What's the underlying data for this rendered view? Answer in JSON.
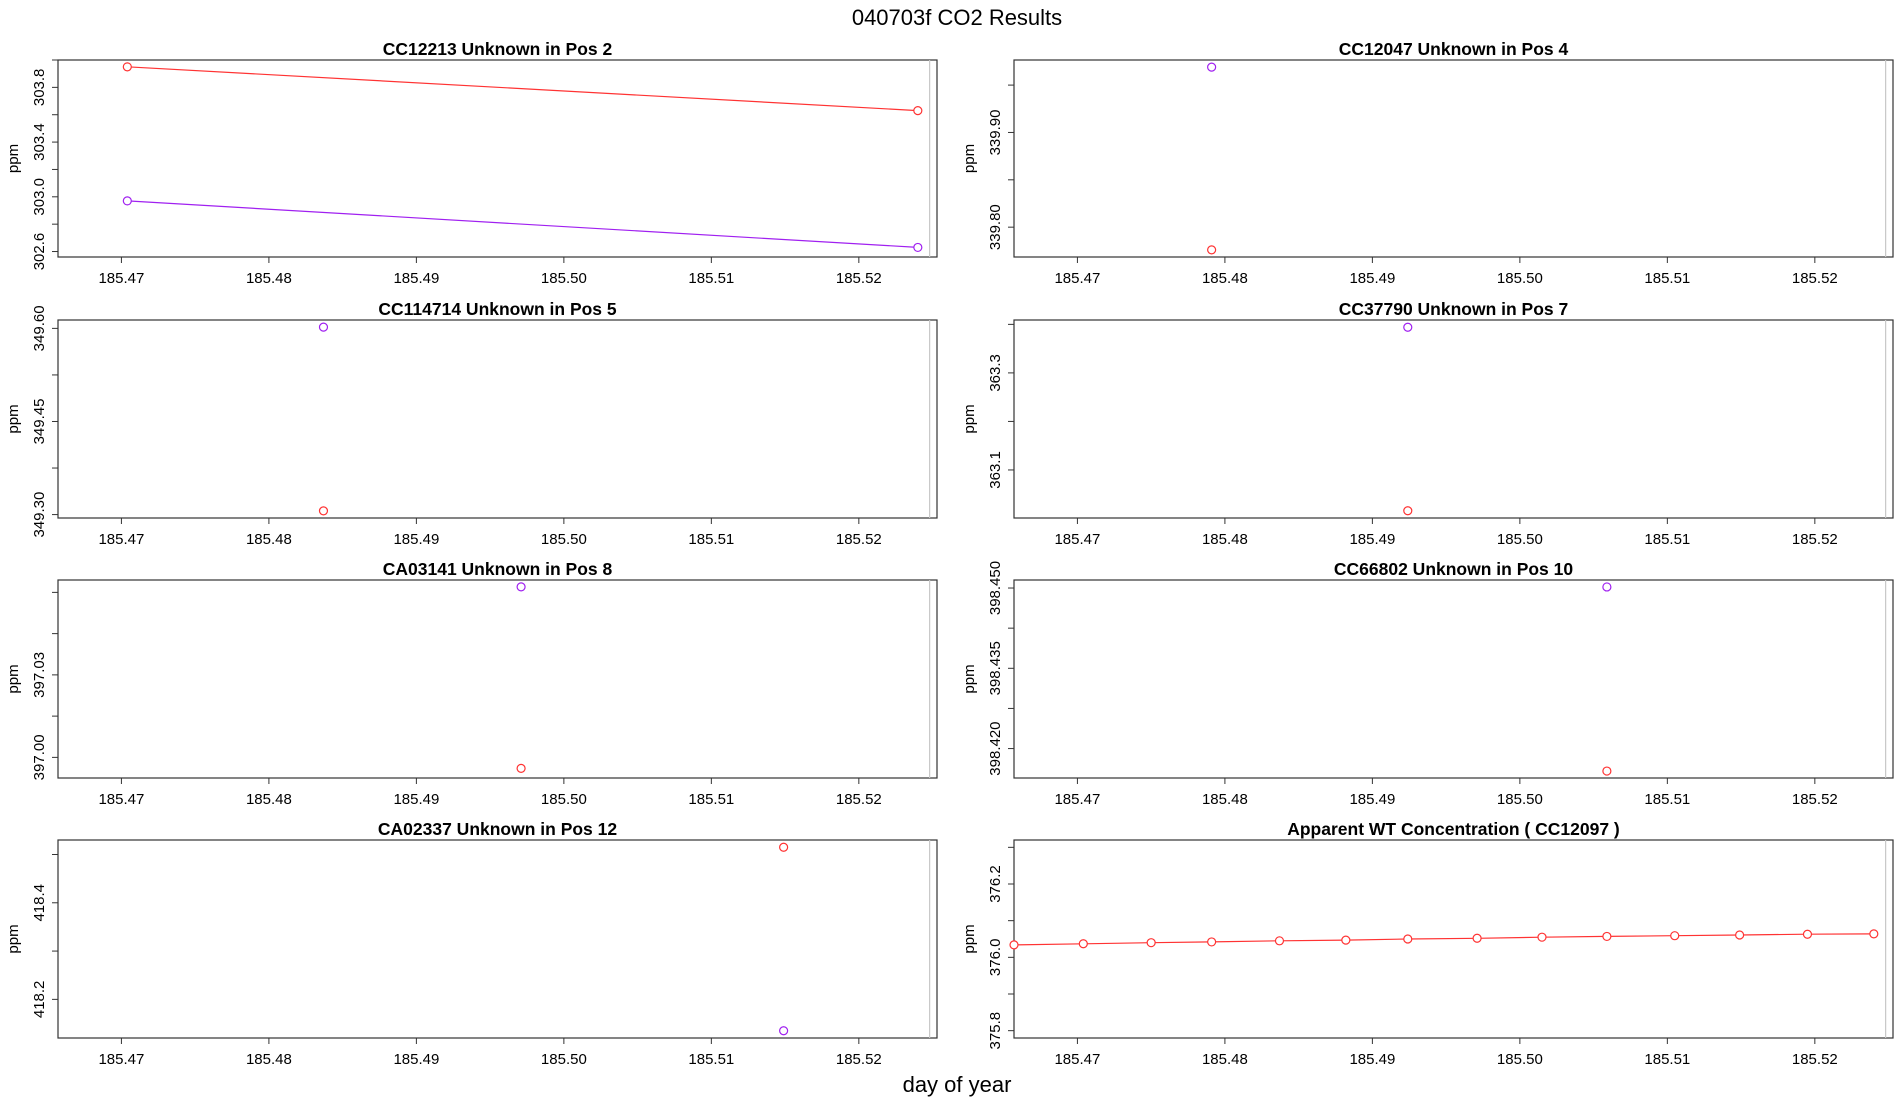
{
  "page_title": "040703f  CO2 Results",
  "x_axis_label": "day of year",
  "colors": {
    "series_red": "#ff3333",
    "series_purple": "#a020f0",
    "frame": "#333333",
    "ref_line": "#c8c8c8"
  },
  "chart_data": [
    {
      "type": "line",
      "title": "CC12213    Unknown in Pos 2",
      "ylabel": "ppm",
      "xlim": [
        185.4657,
        185.5253
      ],
      "ylim": [
        302.56,
        304.0
      ],
      "xticks": [
        "185.47",
        "185.48",
        "185.49",
        "185.50",
        "185.51",
        "185.52"
      ],
      "yticks": [
        "302.6",
        "303.0",
        "303.4",
        "303.8"
      ],
      "ref_x": 185.5248,
      "series": [
        {
          "color": "red",
          "points": [
            [
              185.4704,
              303.95
            ],
            [
              185.524,
              303.63
            ]
          ]
        },
        {
          "color": "purple",
          "points": [
            [
              185.4704,
              302.97
            ],
            [
              185.524,
              302.63
            ]
          ]
        }
      ]
    },
    {
      "type": "scatter",
      "title": "CC12047    Unknown in Pos 4",
      "ylabel": "ppm",
      "xlim": [
        185.4657,
        185.5253
      ],
      "ylim": [
        339.7685,
        339.9765
      ],
      "xticks": [
        "185.47",
        "185.48",
        "185.49",
        "185.50",
        "185.51",
        "185.52"
      ],
      "yticks": [
        "339.80",
        "339.90"
      ],
      "ref_x": 185.5248,
      "series": [
        {
          "color": "purple",
          "points": [
            [
              185.4791,
              339.969
            ]
          ]
        },
        {
          "color": "red",
          "points": [
            [
              185.4791,
              339.776
            ]
          ]
        }
      ]
    },
    {
      "type": "scatter",
      "title": "CC114714    Unknown in Pos 5",
      "ylabel": "ppm",
      "xlim": [
        185.4657,
        185.5253
      ],
      "ylim": [
        349.2945,
        349.6135
      ],
      "xticks": [
        "185.47",
        "185.48",
        "185.49",
        "185.50",
        "185.51",
        "185.52"
      ],
      "yticks": [
        "349.30",
        "349.45",
        "349.60"
      ],
      "ref_x": 185.5248,
      "series": [
        {
          "color": "purple",
          "points": [
            [
              185.4837,
              349.602
            ]
          ]
        },
        {
          "color": "red",
          "points": [
            [
              185.4837,
              349.306
            ]
          ]
        }
      ]
    },
    {
      "type": "scatter",
      "title": "CC37790    Unknown in Pos 7",
      "ylabel": "ppm",
      "xlim": [
        185.4657,
        185.5253
      ],
      "ylim": [
        363.001,
        363.409
      ],
      "xticks": [
        "185.47",
        "185.48",
        "185.49",
        "185.50",
        "185.51",
        "185.52"
      ],
      "yticks": [
        "363.1",
        "363.3"
      ],
      "ref_x": 185.5248,
      "series": [
        {
          "color": "purple",
          "points": [
            [
              185.4924,
              363.394
            ]
          ]
        },
        {
          "color": "red",
          "points": [
            [
              185.4924,
              363.016
            ]
          ]
        }
      ]
    },
    {
      "type": "scatter",
      "title": "CA03141    Unknown in Pos 8",
      "ylabel": "ppm",
      "xlim": [
        185.4657,
        185.5253
      ],
      "ylim": [
        396.9925,
        397.0645
      ],
      "xticks": [
        "185.47",
        "185.48",
        "185.49",
        "185.50",
        "185.51",
        "185.52"
      ],
      "yticks": [
        "397.00",
        "397.03"
      ],
      "ref_x": 185.5248,
      "series": [
        {
          "color": "purple",
          "points": [
            [
              185.4971,
              397.062
            ]
          ]
        },
        {
          "color": "red",
          "points": [
            [
              185.4971,
              396.996
            ]
          ]
        }
      ]
    },
    {
      "type": "scatter",
      "title": "CC66802    Unknown in Pos 10",
      "ylabel": "ppm",
      "xlim": [
        185.4657,
        185.5253
      ],
      "ylim": [
        398.4145,
        398.4515
      ],
      "xticks": [
        "185.47",
        "185.48",
        "185.49",
        "185.50",
        "185.51",
        "185.52"
      ],
      "yticks": [
        "398.420",
        "398.435",
        "398.450"
      ],
      "ref_x": 185.5248,
      "series": [
        {
          "color": "purple",
          "points": [
            [
              185.5059,
              398.4502
            ]
          ]
        },
        {
          "color": "red",
          "points": [
            [
              185.5059,
              398.4158
            ]
          ]
        }
      ]
    },
    {
      "type": "scatter",
      "title": "CA02337    Unknown in Pos 12",
      "ylabel": "ppm",
      "xlim": [
        185.4657,
        185.5253
      ],
      "ylim": [
        418.12,
        418.53
      ],
      "xticks": [
        "185.47",
        "185.48",
        "185.49",
        "185.50",
        "185.51",
        "185.52"
      ],
      "yticks": [
        "418.2",
        "418.4"
      ],
      "ref_x": 185.5248,
      "series": [
        {
          "color": "red",
          "points": [
            [
              185.5149,
              418.515
            ]
          ]
        },
        {
          "color": "purple",
          "points": [
            [
              185.5149,
              418.135
            ]
          ]
        }
      ]
    },
    {
      "type": "line",
      "title": "Apparent WT Concentration ( CC12097 )",
      "ylabel": "ppm",
      "xlim": [
        185.4657,
        185.5253
      ],
      "ylim": [
        375.78,
        376.32
      ],
      "xticks": [
        "185.47",
        "185.48",
        "185.49",
        "185.50",
        "185.51",
        "185.52"
      ],
      "yticks": [
        "375.8",
        "376.0",
        "376.2"
      ],
      "ref_x": 185.5248,
      "series": [
        {
          "color": "red",
          "points": [
            [
              185.4657,
              376.034
            ],
            [
              185.4704,
              376.037
            ],
            [
              185.475,
              376.04
            ],
            [
              185.4791,
              376.042
            ],
            [
              185.4837,
              376.045
            ],
            [
              185.4882,
              376.047
            ],
            [
              185.4924,
              376.05
            ],
            [
              185.4971,
              376.052
            ],
            [
              185.5015,
              376.055
            ],
            [
              185.5059,
              376.057
            ],
            [
              185.5105,
              376.059
            ],
            [
              185.5149,
              376.061
            ],
            [
              185.5195,
              376.063
            ],
            [
              185.524,
              376.064
            ]
          ]
        }
      ]
    }
  ]
}
